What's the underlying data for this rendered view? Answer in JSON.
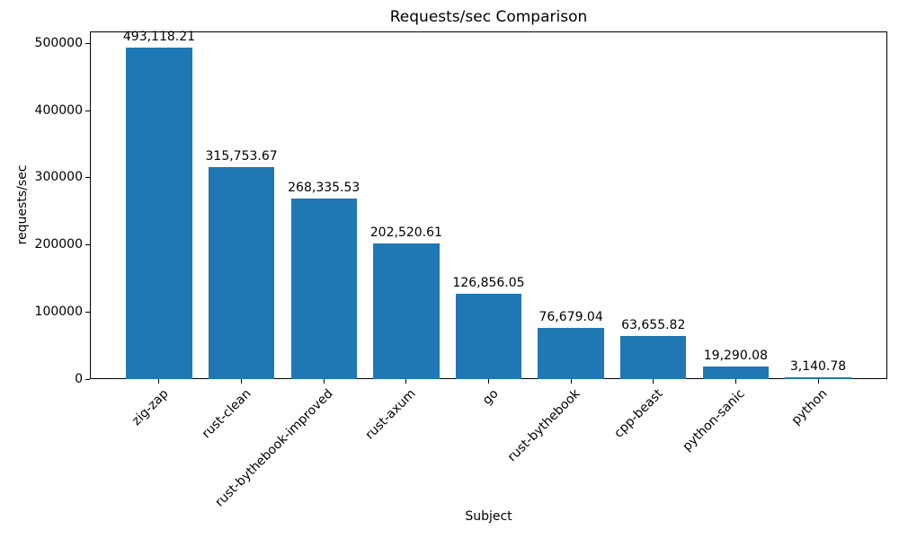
{
  "chart_data": {
    "type": "bar",
    "title": "Requests/sec Comparison",
    "xlabel": "Subject",
    "ylabel": "requests/sec",
    "categories": [
      "zig-zap",
      "rust-clean",
      "rust-bythebook-improved",
      "rust-axum",
      "go",
      "rust-bythebook",
      "cpp-beast",
      "python-sanic",
      "python"
    ],
    "values": [
      493118.21,
      315753.67,
      268335.53,
      202520.61,
      126856.05,
      76679.04,
      63655.82,
      19290.08,
      3140.78
    ],
    "value_labels": [
      "493,118.21",
      "315,753.67",
      "268,335.53",
      "202,520.61",
      "126,856.05",
      "76,679.04",
      "63,655.82",
      "19,290.08",
      "3,140.78"
    ],
    "yticks": [
      0,
      100000,
      200000,
      300000,
      400000,
      500000
    ],
    "ytick_labels": [
      "0",
      "100000",
      "200000",
      "300000",
      "400000",
      "500000"
    ],
    "ylim": [
      0,
      517774
    ],
    "xlim": [
      -0.84,
      8.84
    ],
    "bar_width_units": 0.8,
    "bar_color": "#1f77b4",
    "grid": false,
    "legend_position": "none",
    "xtick_label_rotation_deg": 45
  }
}
